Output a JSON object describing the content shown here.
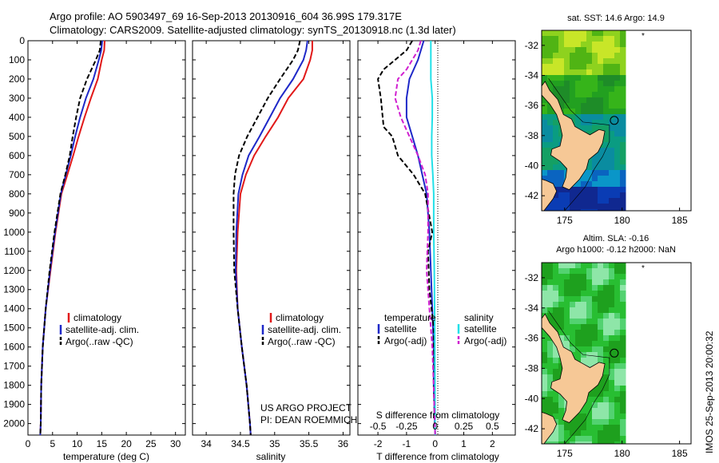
{
  "header": {
    "title_line1": "Argo profile: AO 5903497_69 16-Sep-2013 20130916_604 36.99S 179.317E",
    "title_line2": "Climatology: CARS2009. Satellite-adjusted climatology: synTS_20130918.nc (1.3d later)"
  },
  "colors": {
    "climatology": "#e11919",
    "satellite": "#1e28c8",
    "argo": "#000000",
    "salinity_satellite": "#22e0e8",
    "salinity_argo": "#d020d0",
    "land": "#f6c896"
  },
  "credit": {
    "line1": "US ARGO PROJECT",
    "line2": "PI: DEAN ROEMMICH"
  },
  "stamp": "IMOS 25-Sep-2013 20:00:32",
  "chart_data": [
    {
      "type": "line",
      "id": "temperature",
      "xlabel": "temperature (deg C)",
      "ylabel": "",
      "xlim": [
        0,
        32
      ],
      "ylim": [
        0,
        2060
      ],
      "y_inverted": true,
      "xticks": [
        0,
        5,
        10,
        15,
        20,
        25,
        30
      ],
      "yticks": [
        0,
        100,
        200,
        300,
        400,
        500,
        600,
        700,
        800,
        900,
        1000,
        1100,
        1200,
        1300,
        1400,
        1500,
        1600,
        1700,
        1800,
        1900,
        2000
      ],
      "legend": [
        "climatology",
        "satellite-adj. clim.",
        "Argo(..raw -QC)"
      ],
      "series": [
        {
          "name": "climatology",
          "color": "#e11919",
          "x": [
            15.6,
            15.5,
            15.0,
            14.2,
            12.8,
            11.5,
            10.3,
            9.2,
            8.0,
            6.8,
            5.6,
            4.6,
            3.6,
            3.0,
            2.7,
            2.6,
            2.5
          ],
          "y": [
            0,
            50,
            100,
            200,
            300,
            400,
            500,
            600,
            700,
            800,
            1000,
            1200,
            1400,
            1600,
            1800,
            2000,
            2060
          ]
        },
        {
          "name": "satellite-adj. clim.",
          "color": "#1e28c8",
          "x": [
            15.1,
            14.9,
            14.4,
            13.3,
            11.8,
            10.6,
            9.6,
            8.7,
            7.7,
            6.7,
            5.5,
            4.5,
            3.6,
            3.0,
            2.7,
            2.6,
            2.5
          ],
          "y": [
            0,
            50,
            100,
            200,
            300,
            400,
            500,
            600,
            700,
            800,
            1000,
            1200,
            1400,
            1600,
            1800,
            2000,
            2060
          ]
        },
        {
          "name": "Argo(..raw -QC)",
          "color": "#000000",
          "x": [
            14.8,
            14.6,
            13.8,
            12.0,
            10.6,
            9.8,
            9.1,
            8.5,
            7.6,
            6.6,
            5.4,
            4.4,
            3.6,
            3.0,
            2.7,
            2.6,
            2.5
          ],
          "y": [
            0,
            50,
            100,
            200,
            300,
            400,
            500,
            600,
            700,
            800,
            1000,
            1200,
            1400,
            1600,
            1800,
            2000,
            2060
          ]
        }
      ]
    },
    {
      "type": "line",
      "id": "salinity",
      "xlabel": "salinity",
      "ylabel": "",
      "xlim": [
        33.8,
        36.1
      ],
      "ylim": [
        0,
        2060
      ],
      "y_inverted": true,
      "xticks": [
        34,
        34.5,
        35,
        35.5,
        36
      ],
      "legend": [
        "climatology",
        "satellite-adj. clim.",
        "Argo(..raw -QC)"
      ],
      "series": [
        {
          "name": "climatology",
          "color": "#e11919",
          "x": [
            35.55,
            35.55,
            35.52,
            35.42,
            35.2,
            35.05,
            34.87,
            34.7,
            34.58,
            34.5,
            34.46,
            34.44,
            34.46,
            34.52,
            34.59,
            34.64,
            34.65
          ],
          "y": [
            0,
            50,
            100,
            200,
            300,
            400,
            500,
            600,
            700,
            800,
            1000,
            1200,
            1400,
            1600,
            1800,
            2000,
            2060
          ]
        },
        {
          "name": "satellite-adj. clim.",
          "color": "#1e28c8",
          "x": [
            35.48,
            35.46,
            35.42,
            35.27,
            35.08,
            34.93,
            34.78,
            34.62,
            34.53,
            34.47,
            34.44,
            34.43,
            34.46,
            34.52,
            34.59,
            34.64,
            34.65
          ],
          "y": [
            0,
            50,
            100,
            200,
            300,
            400,
            500,
            600,
            700,
            800,
            1000,
            1200,
            1400,
            1600,
            1800,
            2000,
            2060
          ]
        },
        {
          "name": "Argo(..raw -QC)",
          "color": "#000000",
          "x": [
            35.37,
            35.34,
            35.27,
            35.08,
            34.9,
            34.75,
            34.6,
            34.48,
            34.42,
            34.4,
            34.4,
            34.41,
            34.46,
            34.52,
            34.59,
            34.64,
            34.65
          ],
          "y": [
            0,
            50,
            100,
            200,
            300,
            400,
            500,
            600,
            700,
            800,
            1000,
            1200,
            1400,
            1600,
            1800,
            2000,
            2060
          ]
        }
      ]
    },
    {
      "type": "line",
      "id": "difference",
      "xlabel": "T difference from climatology",
      "xlabel_top": "S difference from climatology",
      "ylabel": "",
      "xlim": [
        -2.7,
        2.8
      ],
      "ylim": [
        0,
        2060
      ],
      "y_inverted": true,
      "xticks": [
        -2,
        -1,
        0,
        1,
        2
      ],
      "xticks_S": [
        "-0.5",
        "-0.25",
        "0",
        "0.25",
        "0.5"
      ],
      "legend_titles": [
        "temperature",
        "salinity"
      ],
      "legend": [
        "satellite",
        "Argo(-adj)",
        "satellite",
        "Argo(-adj)"
      ],
      "series": [
        {
          "name": "temperature satellite",
          "color": "#1e28c8",
          "x": [
            -0.4,
            -0.5,
            -0.6,
            -0.9,
            -1.0,
            -1.0,
            -0.8,
            -0.6,
            -0.45,
            -0.3,
            -0.2,
            -0.15,
            -0.1,
            -0.05,
            -0.05,
            0
          ],
          "y": [
            0,
            50,
            100,
            200,
            300,
            400,
            500,
            600,
            700,
            800,
            1000,
            1200,
            1400,
            1600,
            1800,
            2060
          ]
        },
        {
          "name": "temperature Argo(-adj)",
          "color": "#000000",
          "x": [
            -0.8,
            -1.0,
            -1.8,
            -2.0,
            -1.9,
            -1.8,
            -1.5,
            -1.3,
            -0.75,
            -0.35,
            -0.1,
            -0.25,
            -0.2,
            -0.05,
            -0.05,
            0
          ],
          "y": [
            0,
            50,
            150,
            200,
            300,
            450,
            500,
            600,
            700,
            800,
            1000,
            1100,
            1300,
            1500,
            1800,
            2060
          ]
        },
        {
          "name": "salinity satellite",
          "color": "#22e0e8",
          "x": [
            -0.15,
            -0.15,
            -0.15,
            -0.15,
            -0.1,
            -0.1,
            -0.12,
            -0.12,
            -0.08,
            -0.05,
            -0.05,
            -0.03,
            -0.02,
            -0.01,
            0
          ],
          "y": [
            0,
            50,
            100,
            200,
            300,
            400,
            500,
            600,
            700,
            800,
            1000,
            1200,
            1400,
            1700,
            2060
          ]
        },
        {
          "name": "salinity Argo(-adj)",
          "color": "#d020d0",
          "x": [
            -0.5,
            -0.6,
            -1.0,
            -1.3,
            -1.4,
            -1.2,
            -0.9,
            -0.6,
            -0.35,
            -0.25,
            -0.25,
            -0.3,
            -0.2,
            -0.1,
            -0.05,
            0
          ],
          "y": [
            0,
            50,
            150,
            200,
            300,
            400,
            500,
            600,
            700,
            800,
            1000,
            1200,
            1400,
            1600,
            1800,
            2060
          ]
        }
      ]
    },
    {
      "type": "heatmap",
      "id": "map_sst",
      "title": "sat. SST: 14.6  Argo: 14.9",
      "xlim": [
        173,
        186
      ],
      "ylim": [
        -43,
        -31
      ],
      "xticks": [
        175,
        180,
        185
      ],
      "yticks": [
        -32,
        -34,
        -36,
        -38,
        -40,
        -42
      ],
      "float_lon": 179.317,
      "float_lat": -36.99
    },
    {
      "type": "heatmap",
      "id": "map_sla",
      "title": "Altim. SLA: -0.16",
      "subtitle": "Argo h1000: -0.12 h2000: NaN",
      "xlim": [
        173,
        186
      ],
      "ylim": [
        -43,
        -31
      ],
      "xticks": [
        175,
        180,
        185
      ],
      "yticks": [
        -32,
        -34,
        -36,
        -38,
        -40,
        -42
      ],
      "float_lon": 179.317,
      "float_lat": -36.99
    }
  ]
}
